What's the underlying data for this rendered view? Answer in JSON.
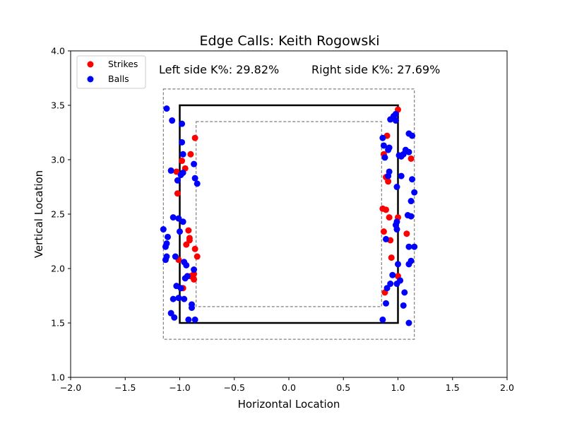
{
  "chart_data": {
    "type": "scatter",
    "title": "Edge Calls: Keith Rogowski",
    "xlabel": "Horizontal Location",
    "ylabel": "Vertical Location",
    "xlim": [
      -2.0,
      2.0
    ],
    "ylim": [
      1.0,
      4.0
    ],
    "x_ticks": [
      "−2.0",
      "−1.5",
      "−1.0",
      "−0.5",
      "0.0",
      "0.5",
      "1.0",
      "1.5",
      "2.0"
    ],
    "y_ticks": [
      "1.0",
      "1.5",
      "2.0",
      "2.5",
      "3.0",
      "3.5",
      "4.0"
    ],
    "grid": false,
    "legend_position": "top-left",
    "annotations": {
      "left": "Left side K%: 29.82%",
      "right": "Right side K%: 27.69%"
    },
    "zones": {
      "strike_zone": {
        "x": [
          -1.0,
          1.0
        ],
        "y": [
          1.5,
          3.5
        ]
      },
      "outer_edge": {
        "x": [
          -1.15,
          1.15
        ],
        "y": [
          1.35,
          3.65
        ]
      },
      "inner_edge": {
        "x": [
          -0.85,
          0.85
        ],
        "y": [
          1.65,
          3.35
        ]
      }
    },
    "series": [
      {
        "name": "Strikes",
        "color": "#ff0000",
        "points": [
          [
            -0.86,
            3.2
          ],
          [
            -0.95,
            2.92
          ],
          [
            -0.98,
            2.99
          ],
          [
            -0.9,
            3.05
          ],
          [
            -1.03,
            2.89
          ],
          [
            -1.02,
            2.69
          ],
          [
            -0.92,
            2.35
          ],
          [
            -0.91,
            2.28
          ],
          [
            -0.91,
            2.26
          ],
          [
            -0.94,
            2.22
          ],
          [
            -0.86,
            2.18
          ],
          [
            -0.84,
            2.11
          ],
          [
            -1.01,
            2.08
          ],
          [
            -0.87,
            1.95
          ],
          [
            -0.9,
            1.93
          ],
          [
            -0.87,
            1.9
          ],
          [
            -0.97,
            1.82
          ],
          [
            1.0,
            3.46
          ],
          [
            0.9,
            3.22
          ],
          [
            0.87,
            3.05
          ],
          [
            0.89,
            2.84
          ],
          [
            0.91,
            2.8
          ],
          [
            0.86,
            2.55
          ],
          [
            0.89,
            2.54
          ],
          [
            0.92,
            2.47
          ],
          [
            1.0,
            2.47
          ],
          [
            0.87,
            2.34
          ],
          [
            0.93,
            2.26
          ],
          [
            0.94,
            2.1
          ],
          [
            1.08,
            2.32
          ],
          [
            1.12,
            3.01
          ],
          [
            1.0,
            1.93
          ],
          [
            0.88,
            1.78
          ]
        ]
      },
      {
        "name": "Balls",
        "color": "#0000ff",
        "points": [
          [
            -1.12,
            3.47
          ],
          [
            -1.07,
            3.36
          ],
          [
            -0.98,
            3.33
          ],
          [
            -0.98,
            3.16
          ],
          [
            -0.97,
            3.05
          ],
          [
            -0.87,
            2.96
          ],
          [
            -1.08,
            2.9
          ],
          [
            -0.97,
            2.88
          ],
          [
            -0.99,
            2.86
          ],
          [
            -0.86,
            2.83
          ],
          [
            -1.02,
            2.81
          ],
          [
            -0.84,
            2.78
          ],
          [
            -1.06,
            2.47
          ],
          [
            -1.01,
            2.46
          ],
          [
            -0.97,
            2.43
          ],
          [
            -1.0,
            2.34
          ],
          [
            -1.15,
            2.36
          ],
          [
            -1.11,
            2.29
          ],
          [
            -1.12,
            2.23
          ],
          [
            -1.13,
            2.2
          ],
          [
            -1.12,
            2.11
          ],
          [
            -1.13,
            2.08
          ],
          [
            -1.04,
            2.11
          ],
          [
            -0.96,
            2.06
          ],
          [
            -0.94,
            2.03
          ],
          [
            -0.87,
            1.99
          ],
          [
            -0.95,
            1.91
          ],
          [
            -0.93,
            1.93
          ],
          [
            -1.03,
            1.84
          ],
          [
            -0.99,
            1.82
          ],
          [
            -1.06,
            1.72
          ],
          [
            -1.01,
            1.73
          ],
          [
            -0.96,
            1.72
          ],
          [
            -0.89,
            1.67
          ],
          [
            -0.89,
            1.64
          ],
          [
            -1.08,
            1.59
          ],
          [
            -1.05,
            1.55
          ],
          [
            -0.92,
            1.53
          ],
          [
            -0.86,
            1.53
          ],
          [
            0.98,
            3.42
          ],
          [
            0.96,
            3.4
          ],
          [
            0.93,
            3.37
          ],
          [
            0.98,
            3.36
          ],
          [
            1.1,
            3.24
          ],
          [
            1.13,
            3.22
          ],
          [
            0.86,
            3.2
          ],
          [
            0.87,
            3.13
          ],
          [
            0.92,
            3.11
          ],
          [
            0.91,
            3.09
          ],
          [
            1.07,
            3.09
          ],
          [
            1.05,
            3.05
          ],
          [
            1.01,
            3.04
          ],
          [
            1.03,
            3.03
          ],
          [
            1.1,
            3.07
          ],
          [
            0.88,
            3.02
          ],
          [
            0.92,
            2.89
          ],
          [
            0.91,
            2.85
          ],
          [
            1.03,
            2.85
          ],
          [
            1.13,
            2.82
          ],
          [
            0.99,
            2.75
          ],
          [
            1.15,
            2.7
          ],
          [
            1.12,
            2.62
          ],
          [
            1.09,
            2.49
          ],
          [
            1.12,
            2.48
          ],
          [
            0.99,
            2.43
          ],
          [
            0.98,
            2.4
          ],
          [
            0.99,
            2.36
          ],
          [
            0.89,
            2.27
          ],
          [
            1.1,
            2.2
          ],
          [
            1.15,
            2.2
          ],
          [
            1.12,
            2.07
          ],
          [
            1.1,
            2.04
          ],
          [
            1.0,
            2.04
          ],
          [
            0.95,
            1.94
          ],
          [
            1.02,
            1.89
          ],
          [
            0.99,
            1.86
          ],
          [
            0.93,
            1.86
          ],
          [
            0.9,
            1.82
          ],
          [
            1.06,
            1.78
          ],
          [
            0.89,
            1.68
          ],
          [
            1.05,
            1.66
          ],
          [
            0.86,
            1.53
          ],
          [
            1.1,
            1.5
          ]
        ]
      }
    ]
  }
}
